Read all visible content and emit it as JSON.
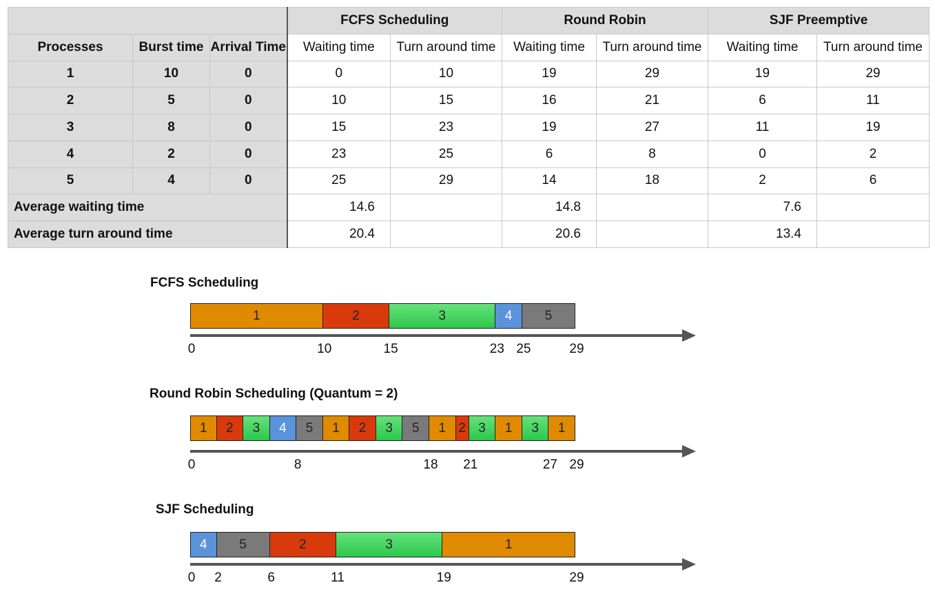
{
  "table": {
    "group_headers": [
      "FCFS Scheduling",
      "Round Robin",
      "SJF Preemptive"
    ],
    "col_headers": {
      "processes": "Processes",
      "burst": "Burst time",
      "arrival": "Arrival Time",
      "waiting": "Waiting time",
      "turnaround": "Turn around time"
    },
    "rows": [
      {
        "p": "1",
        "burst": "10",
        "arrival": "0",
        "fcfs_w": "0",
        "fcfs_t": "10",
        "rr_w": "19",
        "rr_t": "29",
        "sjf_w": "19",
        "sjf_t": "29"
      },
      {
        "p": "2",
        "burst": "5",
        "arrival": "0",
        "fcfs_w": "10",
        "fcfs_t": "15",
        "rr_w": "16",
        "rr_t": "21",
        "sjf_w": "6",
        "sjf_t": "11"
      },
      {
        "p": "3",
        "burst": "8",
        "arrival": "0",
        "fcfs_w": "15",
        "fcfs_t": "23",
        "rr_w": "19",
        "rr_t": "27",
        "sjf_w": "11",
        "sjf_t": "19"
      },
      {
        "p": "4",
        "burst": "2",
        "arrival": "0",
        "fcfs_w": "23",
        "fcfs_t": "25",
        "rr_w": "6",
        "rr_t": "8",
        "sjf_w": "0",
        "sjf_t": "2"
      },
      {
        "p": "5",
        "burst": "4",
        "arrival": "0",
        "fcfs_w": "25",
        "fcfs_t": "29",
        "rr_w": "14",
        "rr_t": "18",
        "sjf_w": "2",
        "sjf_t": "6"
      }
    ],
    "avg_waiting": {
      "label": "Average waiting time",
      "fcfs": "14.6",
      "rr": "14.8",
      "sjf": "7.6"
    },
    "avg_turnaround": {
      "label": "Average turn around time",
      "fcfs": "20.4",
      "rr": "20.6",
      "sjf": "13.4"
    }
  },
  "colors": {
    "p1": "#e08a00",
    "p2": "#d83a0c",
    "p3": "#3cd25a",
    "p4": "#5b92dc",
    "p5": "#7a7a7a",
    "axis": "#555555"
  },
  "gantts": [
    {
      "title": "FCFS Scheduling",
      "segments": [
        {
          "p": 1,
          "label": "1",
          "start": 0,
          "end": 10
        },
        {
          "p": 2,
          "label": "2",
          "start": 10,
          "end": 15
        },
        {
          "p": 3,
          "label": "3",
          "start": 15,
          "end": 23
        },
        {
          "p": 4,
          "label": "4",
          "start": 23,
          "end": 25
        },
        {
          "p": 5,
          "label": "5",
          "start": 25,
          "end": 29
        }
      ],
      "ticks": [
        {
          "label": "0",
          "at": 0
        },
        {
          "label": "10",
          "at": 10
        },
        {
          "label": "15",
          "at": 15
        },
        {
          "label": "23",
          "at": 23
        },
        {
          "label": "25",
          "at": 25
        },
        {
          "label": "29",
          "at": 29
        }
      ]
    },
    {
      "title": "Round Robin Scheduling (Quantum = 2)",
      "segments": [
        {
          "p": 1,
          "label": "1",
          "start": 0,
          "end": 2
        },
        {
          "p": 2,
          "label": "2",
          "start": 2,
          "end": 4
        },
        {
          "p": 3,
          "label": "3",
          "start": 4,
          "end": 6
        },
        {
          "p": 4,
          "label": "4",
          "start": 6,
          "end": 8
        },
        {
          "p": 5,
          "label": "5",
          "start": 8,
          "end": 10
        },
        {
          "p": 1,
          "label": "1",
          "start": 10,
          "end": 12
        },
        {
          "p": 2,
          "label": "2",
          "start": 12,
          "end": 14
        },
        {
          "p": 3,
          "label": "3",
          "start": 14,
          "end": 16
        },
        {
          "p": 5,
          "label": "5",
          "start": 16,
          "end": 18
        },
        {
          "p": 1,
          "label": "1",
          "start": 18,
          "end": 20
        },
        {
          "p": 2,
          "label": "2",
          "start": 20,
          "end": 21
        },
        {
          "p": 3,
          "label": "3",
          "start": 21,
          "end": 23
        },
        {
          "p": 1,
          "label": "1",
          "start": 23,
          "end": 25
        },
        {
          "p": 3,
          "label": "3",
          "start": 25,
          "end": 27
        },
        {
          "p": 1,
          "label": "1",
          "start": 27,
          "end": 29
        }
      ],
      "ticks": [
        {
          "label": "0",
          "at": 0
        },
        {
          "label": "8",
          "at": 8
        },
        {
          "label": "18",
          "at": 18
        },
        {
          "label": "21",
          "at": 21
        },
        {
          "label": "27",
          "at": 27
        },
        {
          "label": "29",
          "at": 29
        }
      ]
    },
    {
      "title": "SJF Scheduling",
      "segments": [
        {
          "p": 4,
          "label": "4",
          "start": 0,
          "end": 2
        },
        {
          "p": 5,
          "label": "5",
          "start": 2,
          "end": 6
        },
        {
          "p": 2,
          "label": "2",
          "start": 6,
          "end": 11
        },
        {
          "p": 3,
          "label": "3",
          "start": 11,
          "end": 19
        },
        {
          "p": 1,
          "label": "1",
          "start": 19,
          "end": 29
        }
      ],
      "ticks": [
        {
          "label": "0",
          "at": 0
        },
        {
          "label": "2",
          "at": 2
        },
        {
          "label": "6",
          "at": 6
        },
        {
          "label": "11",
          "at": 11
        },
        {
          "label": "19",
          "at": 19
        },
        {
          "label": "29",
          "at": 29
        }
      ]
    }
  ]
}
